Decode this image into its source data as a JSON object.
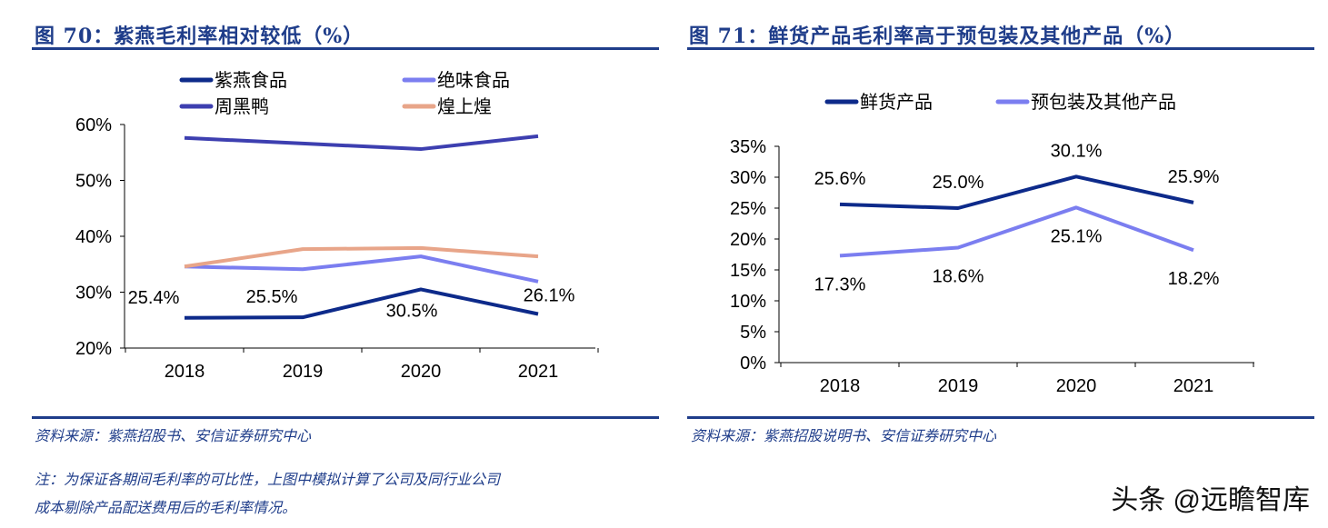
{
  "chart_data": [
    {
      "type": "line",
      "title": "图 70：紫燕毛利率相对较低（%）",
      "categories": [
        "2018",
        "2019",
        "2020",
        "2021"
      ],
      "ylim": [
        20,
        60
      ],
      "yticks": [
        "20%",
        "30%",
        "40%",
        "50%",
        "60%"
      ],
      "legend_placement": "top",
      "series": [
        {
          "name": "紫燕食品",
          "color": "#0d2a8a",
          "values": [
            25.4,
            25.5,
            30.5,
            26.1
          ],
          "labels": [
            "25.4%",
            "25.5%",
            "30.5%",
            "26.1%"
          ]
        },
        {
          "name": "绝味食品",
          "color": "#7b7ef0",
          "values": [
            34.6,
            34.1,
            36.4,
            31.9
          ]
        },
        {
          "name": "周黑鸭",
          "color": "#3d3fb0",
          "values": [
            57.6,
            56.6,
            55.6,
            57.9
          ]
        },
        {
          "name": "煌上煌",
          "color": "#e8a589",
          "values": [
            34.6,
            37.7,
            37.9,
            36.4
          ]
        }
      ],
      "source": "资料来源：紫燕招股书、安信证券研究中心",
      "note_lines": [
        "注：为保证各期间毛利率的可比性，上图中模拟计算了公司及同行业公司",
        "成本剔除产品配送费用后的毛利率情况。"
      ]
    },
    {
      "type": "line",
      "title": "图 71：鲜货产品毛利率高于预包装及其他产品（%）",
      "categories": [
        "2018",
        "2019",
        "2020",
        "2021"
      ],
      "ylim": [
        0,
        35
      ],
      "yticks": [
        "0%",
        "5%",
        "10%",
        "15%",
        "20%",
        "25%",
        "30%",
        "35%"
      ],
      "legend_placement": "top",
      "series": [
        {
          "name": "鲜货产品",
          "color": "#0d2a8a",
          "values": [
            25.6,
            25.0,
            30.1,
            25.9
          ],
          "labels": [
            "25.6%",
            "25.0%",
            "30.1%",
            "25.9%"
          ]
        },
        {
          "name": "预包装及其他产品",
          "color": "#7b7ef0",
          "values": [
            17.3,
            18.6,
            25.1,
            18.2
          ],
          "labels": [
            "17.3%",
            "18.6%",
            "25.1%",
            "18.2%"
          ]
        }
      ],
      "source": "资料来源：紫燕招股说明书、安信证券研究中心"
    }
  ],
  "watermark": "头条 @远瞻智库"
}
